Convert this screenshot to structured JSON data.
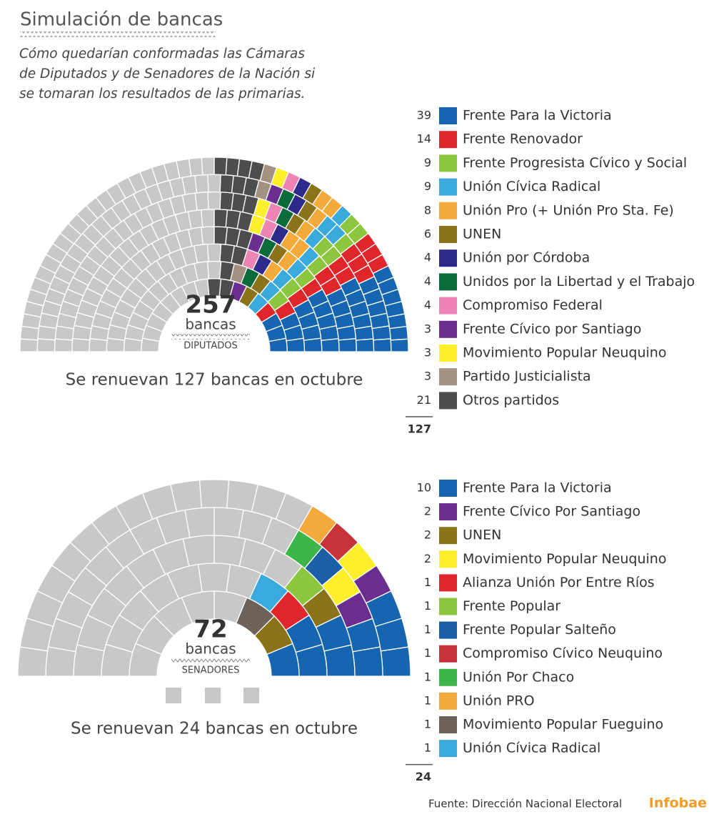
{
  "header": {
    "title": "Simulación de bancas",
    "subtitle_lines": [
      "Cómo quedarían conformadas las Cámaras",
      "de Diputados y de Senadores de la Nación si",
      "se tomaran los resultados de las primarias."
    ]
  },
  "chart_data": [
    {
      "type": "parliament",
      "total_seats": 257,
      "total_label": "bancas",
      "chamber": "DIPUTADOS",
      "caption": "Se renuevan 127 bancas en octubre",
      "renewed": 127,
      "other_color": "#c8c8c8",
      "series": [
        {
          "name": "Frente Para la Victoria",
          "color": "#1665b0",
          "value": 39
        },
        {
          "name": "Frente Renovador",
          "color": "#e0262b",
          "value": 14
        },
        {
          "name": "Frente Progresista Cívico y Social",
          "color": "#8cc63f",
          "value": 9
        },
        {
          "name": "Unión Cívica Radical",
          "color": "#3aa9dc",
          "value": 9
        },
        {
          "name": "Unión Pro (+ Unión Pro Sta. Fe)",
          "color": "#f4a93b",
          "value": 8
        },
        {
          "name": "UNEN",
          "color": "#8b7319",
          "value": 6
        },
        {
          "name": "Unión por Córdoba",
          "color": "#2d2a8c",
          "value": 4
        },
        {
          "name": "Unidos por la Libertad y el Trabajo",
          "color": "#0b6b3a",
          "value": 4
        },
        {
          "name": "Compromiso Federal",
          "color": "#ee84b3",
          "value": 4
        },
        {
          "name": "Frente Cívico por Santiago",
          "color": "#6a2e91",
          "value": 3
        },
        {
          "name": "Movimiento Popular Neuquino",
          "color": "#ffee2a",
          "value": 3
        },
        {
          "name": "Partido Justicialista",
          "color": "#a39181",
          "value": 3
        },
        {
          "name": "Otros partidos",
          "color": "#4d4d4d",
          "value": 21
        }
      ]
    },
    {
      "type": "parliament",
      "total_seats": 72,
      "total_label": "bancas",
      "chamber": "SENADORES",
      "caption": "Se renuevan 24 bancas en octubre",
      "renewed": 24,
      "other_color": "#c8c8c8",
      "series": [
        {
          "name": "Frente Para la Victoria",
          "color": "#1665b0",
          "value": 10
        },
        {
          "name": "Frente Cívico Por Santiago",
          "color": "#6a2e91",
          "value": 2
        },
        {
          "name": "UNEN",
          "color": "#8b7319",
          "value": 2
        },
        {
          "name": "Movimiento Popular Neuquino",
          "color": "#ffee2a",
          "value": 2
        },
        {
          "name": "Alianza Unión Por Entre Ríos",
          "color": "#e0262b",
          "value": 1
        },
        {
          "name": "Frente Popular",
          "color": "#8cc63f",
          "value": 1
        },
        {
          "name": "Frente Popular Salteño",
          "color": "#1b5fa6",
          "value": 1
        },
        {
          "name": "Compromiso Cívico Neuquino",
          "color": "#c8323a",
          "value": 1
        },
        {
          "name": "Unión Por Chaco",
          "color": "#3db54a",
          "value": 1
        },
        {
          "name": "Unión PRO",
          "color": "#f4a93b",
          "value": 1
        },
        {
          "name": "Movimiento Popular Fueguino",
          "color": "#6d6259",
          "value": 1
        },
        {
          "name": "Unión Cívica Radical",
          "color": "#3aa9dc",
          "value": 1
        }
      ]
    }
  ],
  "footer": {
    "source": "Fuente: Dirección Nacional Electoral",
    "brand": "Infobae"
  }
}
